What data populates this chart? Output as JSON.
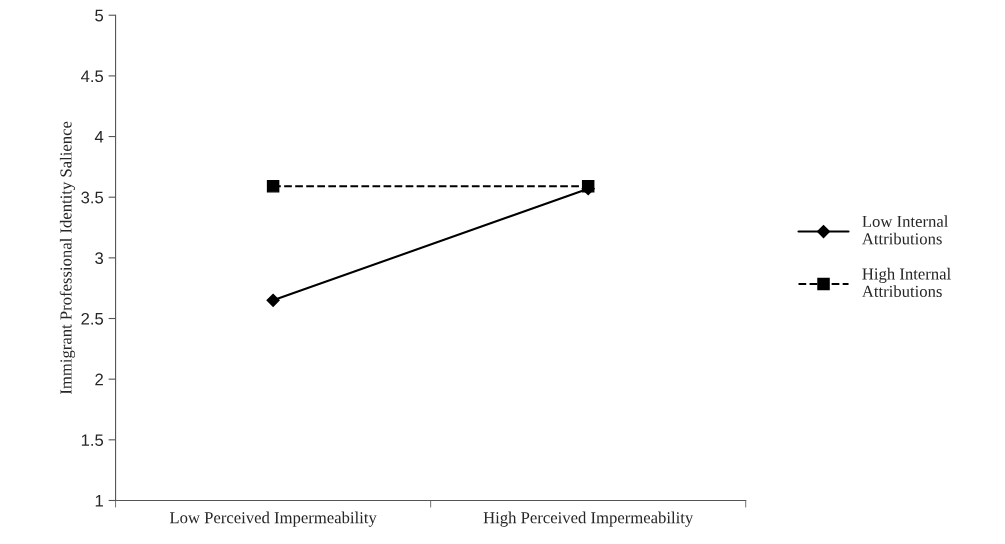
{
  "chart_data": {
    "type": "line",
    "ylabel": "Immigrant Professional Identity Salience",
    "categories": [
      "Low Perceived Impermeability",
      "High Perceived Impermeability"
    ],
    "series": [
      {
        "name": "Low Internal\nAttributions",
        "color": "#000000",
        "values": [
          2.65,
          3.57
        ],
        "marker": "diamond",
        "line_style": "solid"
      },
      {
        "name": "High Internal\nAttributions",
        "color": "#000000",
        "values": [
          3.59,
          3.59
        ],
        "marker": "square",
        "line_style": "dashed"
      }
    ],
    "ylim": [
      1,
      5
    ],
    "yticks": [
      1,
      1.5,
      2,
      2.5,
      3,
      3.5,
      4,
      4.5,
      5
    ],
    "grid": false,
    "legend": "right"
  }
}
